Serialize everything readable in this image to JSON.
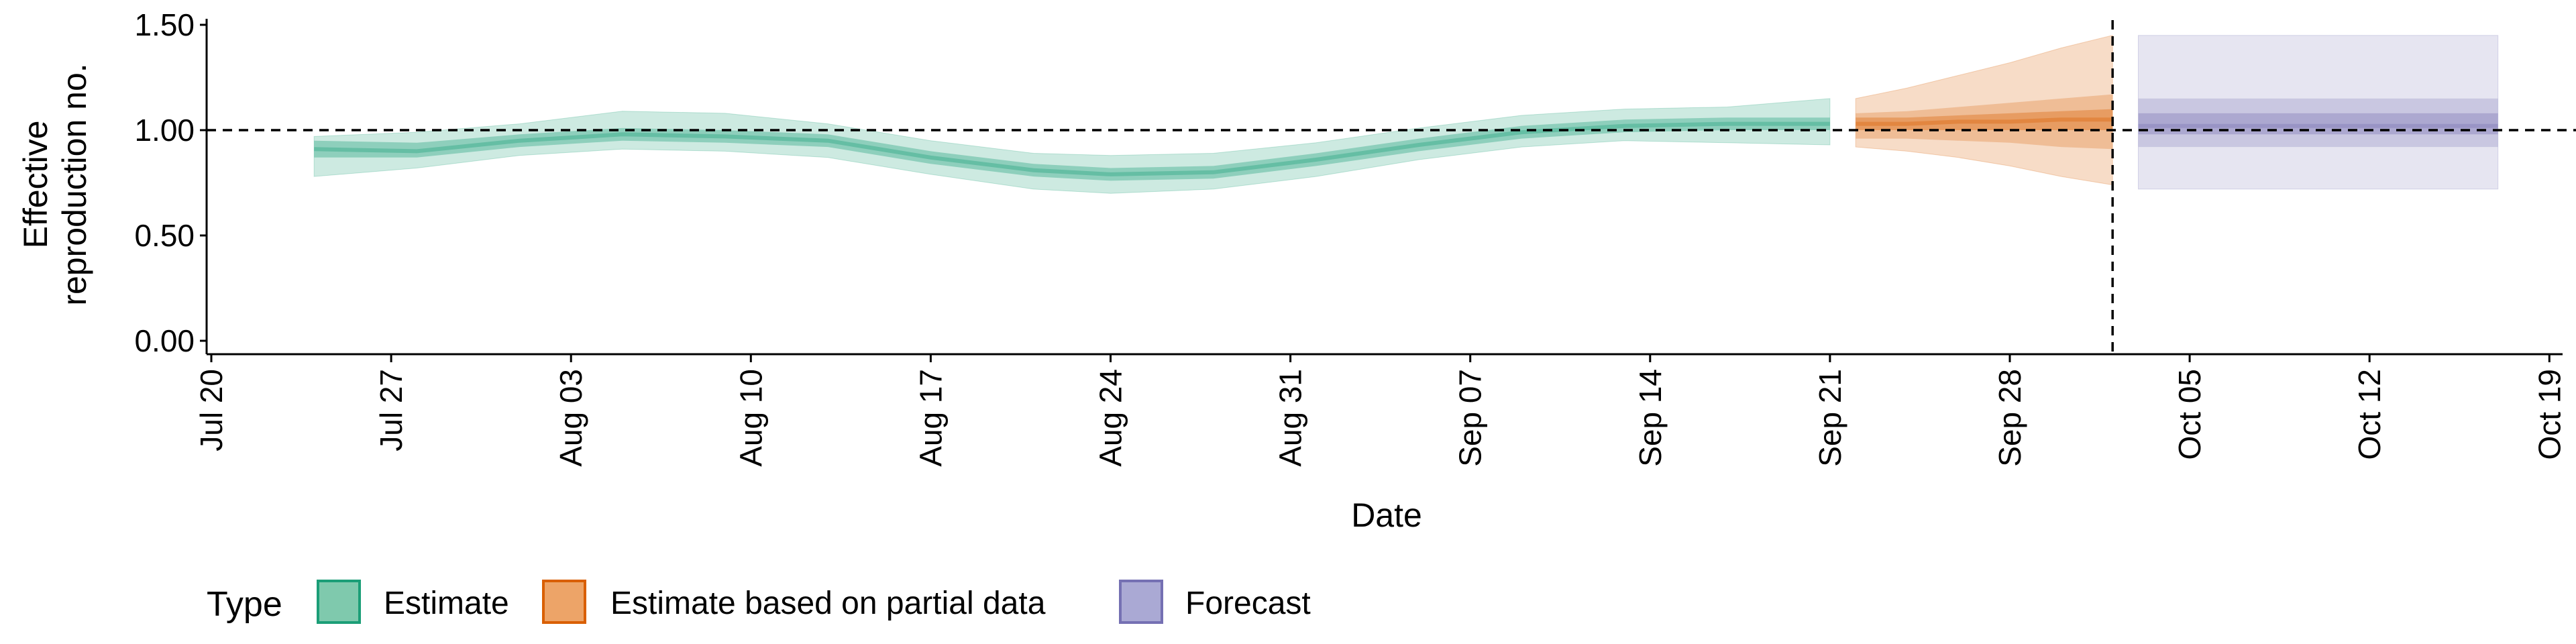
{
  "chart_data": {
    "type": "area",
    "title": "",
    "xlabel": "Date",
    "ylabel_lines": [
      "Effective",
      "reproduction no."
    ],
    "x_ticks": [
      "Jul 20",
      "Jul 27",
      "Aug 03",
      "Aug 10",
      "Aug 17",
      "Aug 24",
      "Aug 31",
      "Sep 07",
      "Sep 14",
      "Sep 21",
      "Sep 28",
      "Oct 05",
      "Oct 12",
      "Oct 19"
    ],
    "x_tick_dates": [
      "2020-07-20",
      "2020-07-27",
      "2020-08-03",
      "2020-08-10",
      "2020-08-17",
      "2020-08-24",
      "2020-08-31",
      "2020-09-07",
      "2020-09-14",
      "2020-09-21",
      "2020-09-28",
      "2020-10-05",
      "2020-10-12",
      "2020-10-19"
    ],
    "y_ticks": [
      "0.00",
      "0.50",
      "1.00",
      "1.50"
    ],
    "y_tick_values": [
      0,
      0.5,
      1.0,
      1.5
    ],
    "xlim": [
      "2020-07-20",
      "2020-10-20"
    ],
    "ylim": [
      0,
      1.55
    ],
    "reference_line_y": 1.0,
    "vline_date": "2020-10-02",
    "grid": false,
    "legend": {
      "title": "Type",
      "position": "bottom",
      "items": [
        {
          "label": "Estimate",
          "fill": "#7fc9ad",
          "stroke": "#1b9e77"
        },
        {
          "label": "Estimate based on partial data",
          "fill": "#eda468",
          "stroke": "#d95f02"
        },
        {
          "label": "Forecast",
          "fill": "#aaa9d4",
          "stroke": "#7570b3"
        }
      ]
    },
    "colors": {
      "estimate": "#1b9e77",
      "partial": "#d95f02",
      "forecast": "#7570b3"
    },
    "series": [
      {
        "name": "Estimate",
        "color": "#1b9e77",
        "x": [
          "2020-07-24",
          "2020-07-28",
          "2020-08-01",
          "2020-08-05",
          "2020-08-09",
          "2020-08-13",
          "2020-08-17",
          "2020-08-21",
          "2020-08-24",
          "2020-08-28",
          "2020-09-01",
          "2020-09-05",
          "2020-09-09",
          "2020-09-13",
          "2020-09-17",
          "2020-09-21"
        ],
        "median": [
          0.91,
          0.9,
          0.95,
          0.98,
          0.97,
          0.95,
          0.87,
          0.81,
          0.79,
          0.8,
          0.86,
          0.93,
          0.99,
          1.02,
          1.03,
          1.03
        ],
        "lower_50": [
          0.87,
          0.87,
          0.92,
          0.95,
          0.94,
          0.92,
          0.84,
          0.78,
          0.76,
          0.77,
          0.83,
          0.9,
          0.96,
          0.99,
          1.0,
          1.0
        ],
        "upper_50": [
          0.95,
          0.94,
          0.98,
          1.01,
          1.0,
          0.98,
          0.9,
          0.84,
          0.82,
          0.83,
          0.89,
          0.96,
          1.02,
          1.05,
          1.06,
          1.06
        ],
        "lower_90": [
          0.78,
          0.82,
          0.88,
          0.91,
          0.9,
          0.87,
          0.79,
          0.72,
          0.7,
          0.72,
          0.78,
          0.86,
          0.92,
          0.95,
          0.94,
          0.93
        ],
        "upper_90": [
          0.97,
          0.99,
          1.03,
          1.09,
          1.08,
          1.03,
          0.95,
          0.89,
          0.88,
          0.89,
          0.94,
          1.01,
          1.07,
          1.1,
          1.11,
          1.15
        ]
      },
      {
        "name": "Estimate based on partial data",
        "color": "#d95f02",
        "x": [
          "2020-09-22",
          "2020-09-24",
          "2020-09-26",
          "2020-09-28",
          "2020-09-30",
          "2020-10-02"
        ],
        "median": [
          1.03,
          1.03,
          1.04,
          1.04,
          1.05,
          1.05
        ],
        "lower_50": [
          1.0,
          1.0,
          1.0,
          1.0,
          1.0,
          1.0
        ],
        "upper_50": [
          1.06,
          1.06,
          1.07,
          1.08,
          1.09,
          1.1
        ],
        "lower_25": [
          0.96,
          0.96,
          0.95,
          0.94,
          0.92,
          0.91
        ],
        "upper_75": [
          1.08,
          1.09,
          1.11,
          1.13,
          1.15,
          1.17
        ],
        "lower_90": [
          0.92,
          0.9,
          0.87,
          0.83,
          0.78,
          0.74
        ],
        "upper_90": [
          1.15,
          1.2,
          1.26,
          1.32,
          1.39,
          1.45
        ]
      },
      {
        "name": "Forecast",
        "color": "#7570b3",
        "x": [
          "2020-10-03",
          "2020-10-17"
        ],
        "median": [
          1.02,
          1.02
        ],
        "lower_50": [
          0.98,
          0.98
        ],
        "upper_50": [
          1.08,
          1.08
        ],
        "lower_75": [
          0.92,
          0.92
        ],
        "upper_75": [
          1.15,
          1.15
        ],
        "lower_90": [
          0.72,
          0.72
        ],
        "upper_90": [
          1.45,
          1.45
        ]
      }
    ]
  }
}
